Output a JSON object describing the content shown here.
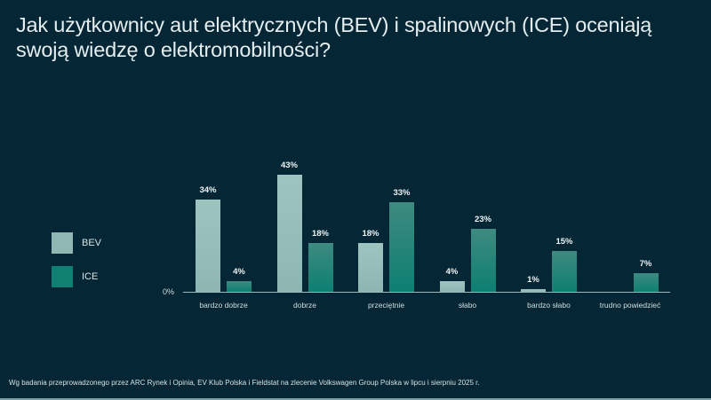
{
  "title": "Jak użytkownicy aut elektrycznych (BEV) i spalinowych (ICE) oceniają swoją wiedzę o elektromobilności?",
  "legend": [
    {
      "label": "BEV",
      "color": "#8fb8b4"
    },
    {
      "label": "ICE",
      "color": "#0f8072"
    }
  ],
  "axis": {
    "zero_label": "0%"
  },
  "footer": "Wg badania przeprowadzonego przez ARC Rynek i Opinia, EV Klub Polska i Fieldstat na zlecenie Volkswagen Group Polska w lipcu i sierpniu 2025 r.",
  "chart_data": {
    "type": "bar",
    "title": "Jak użytkownicy aut elektrycznych (BEV) i spalinowych (ICE) oceniają swoją wiedzę o elektromobilności?",
    "categories": [
      "bardzo dobrze",
      "dobrze",
      "przeciętnie",
      "słabo",
      "bardzo słabo",
      "trudno powiedzieć"
    ],
    "series": [
      {
        "name": "BEV",
        "values": [
          34,
          43,
          18,
          4,
          1,
          0
        ],
        "labels": [
          "34%",
          "43%",
          "18%",
          "4%",
          "1%",
          ""
        ]
      },
      {
        "name": "ICE",
        "values": [
          4,
          18,
          33,
          23,
          15,
          7
        ],
        "labels": [
          "4%",
          "18%",
          "33%",
          "23%",
          "15%",
          "7%"
        ]
      }
    ],
    "xlabel": "",
    "ylabel": "",
    "ylim": [
      0,
      45
    ],
    "grid": false,
    "legend_position": "left",
    "unit": "%"
  }
}
